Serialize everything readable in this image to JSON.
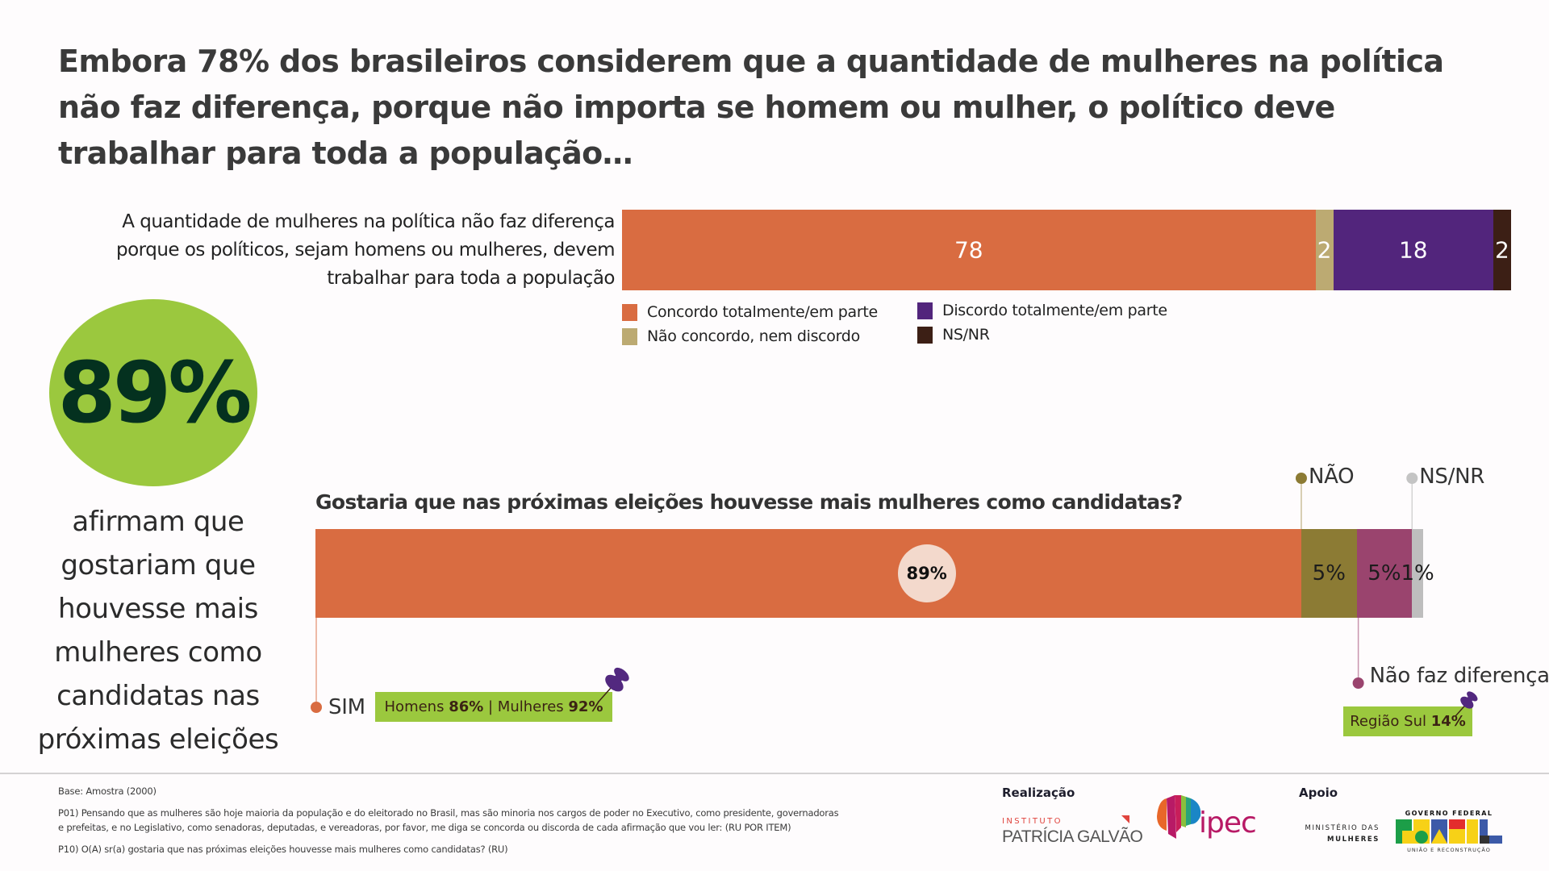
{
  "headline": "Embora 78% dos brasileiros considerem que a quantidade de mulheres na política não faz diferença, porque não importa se homem ou mulher, o político deve trabalhar para toda a população…",
  "chart_data": [
    {
      "type": "bar",
      "orientation": "horizontal-stacked",
      "categories": [
        "A quantidade de mulheres na política não faz diferença porque os políticos, sejam homens ou mulheres, devem trabalhar para toda a população"
      ],
      "series": [
        {
          "name": "Concordo totalmente/em parte",
          "values": [
            78
          ],
          "label": "78",
          "color": "#d96c41"
        },
        {
          "name": "Não concordo, nem discordo",
          "values": [
            2
          ],
          "label": "2",
          "color": "#bcaa72"
        },
        {
          "name": "Discordo totalmente/em parte",
          "values": [
            18
          ],
          "label": "18",
          "color": "#52257c"
        },
        {
          "name": "NS/NR",
          "values": [
            2
          ],
          "label": "2",
          "color": "#3c1f15"
        }
      ],
      "xlim": [
        0,
        100
      ],
      "legend": "bottom"
    },
    {
      "type": "bar",
      "orientation": "horizontal-stacked",
      "title": "Gostaria que nas próximas eleições houvesse mais mulheres como candidatas?",
      "series": [
        {
          "name": "SIM",
          "values": [
            89
          ],
          "label": "89%",
          "color": "#d96c41",
          "dot_color": "#d96c41"
        },
        {
          "name": "NÃO",
          "values": [
            5
          ],
          "label": "5%",
          "color": "#8c7b34",
          "dot_color": "#8c7b34"
        },
        {
          "name": "Não faz diferença",
          "values": [
            5
          ],
          "label": "5%",
          "color": "#9a446e",
          "dot_color": "#9a446e"
        },
        {
          "name": "NS/NR",
          "values": [
            1
          ],
          "label": "1%",
          "color": "#bebebe",
          "dot_color": "#c4c4c4"
        }
      ],
      "xlim": [
        0,
        100
      ]
    }
  ],
  "highlight": {
    "value": "89%",
    "caption_lines": [
      "afirmam que",
      "gostariam que",
      "houvesse mais",
      "mulheres como",
      "candidatas nas",
      "próximas eleições"
    ]
  },
  "tags": {
    "sim": {
      "prefix": "Homens ",
      "v1": "86%",
      "mid": " | Mulheres ",
      "v2": "92%"
    },
    "nao_faz": {
      "prefix": "Região Sul ",
      "v1": "14%"
    }
  },
  "footer": {
    "base": "Base: Amostra (2000)",
    "p01_line1": "P01) Pensando que as mulheres são hoje maioria da população e do eleitorado no Brasil, mas são minoria nos cargos de poder no Executivo, como presidente, governadoras",
    "p01_line2": "e prefeitas, e no Legislativo, como senadoras, deputadas, e vereadoras, por favor, me diga se concorda ou discorda de cada afirmação que vou ler: (RU POR ITEM)",
    "p10": "P10) O(A) sr(a) gostaria que nas próximas eleições houvesse mais mulheres como candidatas? (RU)",
    "realizacao": "Realização",
    "apoio": "Apoio",
    "logos": {
      "instituto_top": "INSTITUTO",
      "instituto_name": "PATRÍCIA GALVÃO",
      "ipec": "ipec",
      "ministerio_top": "MINISTÉRIO DAS",
      "ministerio_bottom": "MULHERES",
      "gov_top": "GOVERNO FEDERAL",
      "gov_word": "BRASIL",
      "gov_bottom": "UNIÃO E RECONSTRUÇÃO"
    }
  },
  "colors": {
    "green": "#9bc83e",
    "dark_green": "#04311f",
    "pin": "#52287f"
  }
}
